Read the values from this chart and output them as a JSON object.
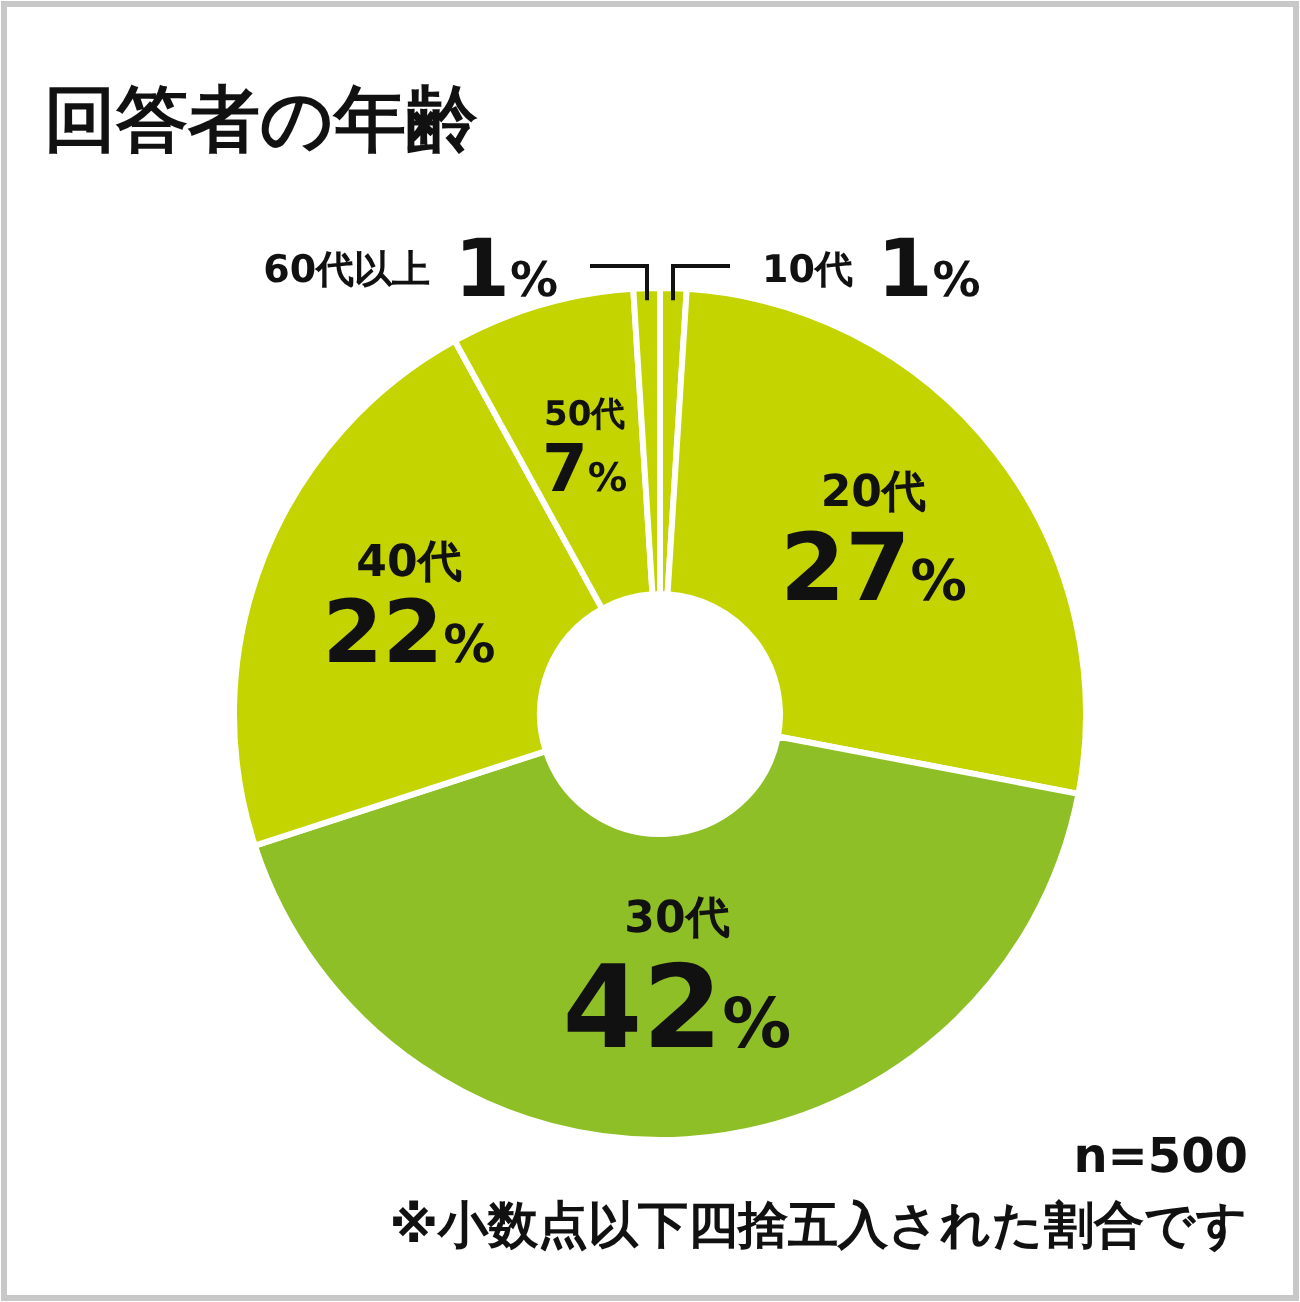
{
  "chart_data": {
    "type": "donut",
    "title": "回答者の年齢",
    "categories": [
      "10代",
      "20代",
      "30代",
      "40代",
      "50代",
      "60代以上"
    ],
    "values": [
      1,
      27,
      42,
      22,
      7,
      1
    ],
    "value_labels": [
      "1%",
      "27%",
      "42%",
      "22%",
      "7%",
      "1%"
    ],
    "colors": [
      "#c3d400",
      "#c3d400",
      "#8fbf26",
      "#c3d400",
      "#c3d400",
      "#c3d400"
    ],
    "annotations": [
      "n=500",
      "※小数点以下四捨五入された割合です"
    ]
  }
}
